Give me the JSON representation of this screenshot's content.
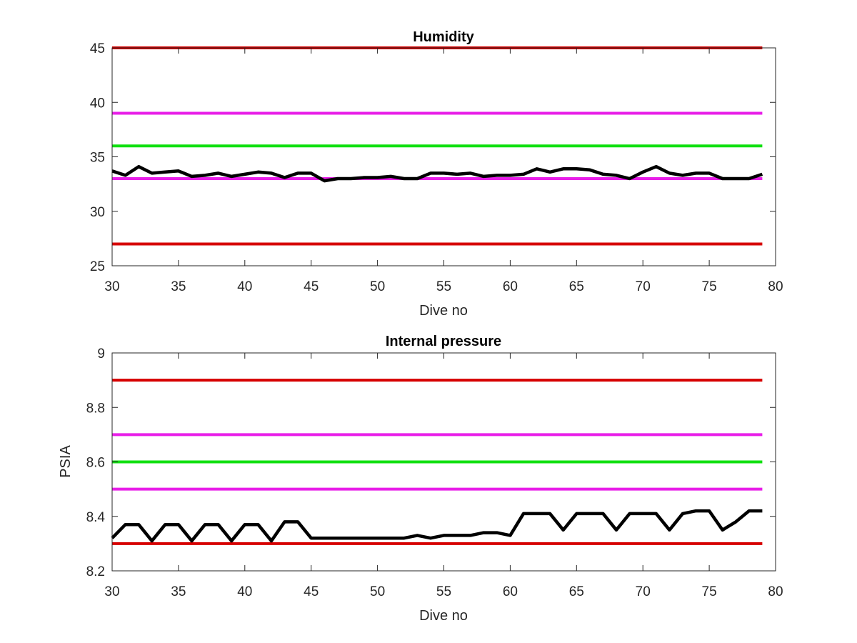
{
  "chart_data": [
    {
      "type": "line",
      "title": "Humidity",
      "xlabel": "Dive no",
      "ylabel": "",
      "xlim": [
        30,
        80
      ],
      "ylim": [
        25,
        45
      ],
      "xticks": [
        30,
        35,
        40,
        45,
        50,
        55,
        60,
        65,
        70,
        75,
        80
      ],
      "yticks": [
        25,
        30,
        35,
        40,
        45
      ],
      "grid": false,
      "series": [
        {
          "color": "#000000",
          "kind": "data",
          "x": [
            30,
            31,
            32,
            33,
            34,
            35,
            36,
            37,
            38,
            39,
            40,
            41,
            42,
            43,
            44,
            45,
            46,
            47,
            48,
            49,
            50,
            51,
            52,
            53,
            54,
            55,
            56,
            57,
            58,
            59,
            60,
            61,
            62,
            63,
            64,
            65,
            66,
            67,
            68,
            69,
            70,
            71,
            72,
            73,
            74,
            75,
            76,
            77,
            78,
            79
          ],
          "y": [
            33.7,
            33.3,
            34.1,
            33.5,
            33.6,
            33.7,
            33.2,
            33.3,
            33.5,
            33.2,
            33.4,
            33.6,
            33.5,
            33.1,
            33.5,
            33.5,
            32.8,
            33.0,
            33.0,
            33.1,
            33.1,
            33.2,
            33.0,
            33.0,
            33.5,
            33.5,
            33.4,
            33.5,
            33.2,
            33.3,
            33.3,
            33.4,
            33.9,
            33.6,
            33.9,
            33.9,
            33.8,
            33.4,
            33.3,
            33.0,
            33.6,
            34.1,
            33.5,
            33.3,
            33.5,
            33.5,
            33.0,
            33.0,
            33.0,
            33.4
          ]
        },
        {
          "color": "#d60000",
          "kind": "limit",
          "x": [
            30,
            79
          ],
          "y": [
            45,
            45
          ]
        },
        {
          "color": "#e81ee8",
          "kind": "limit",
          "x": [
            30,
            79
          ],
          "y": [
            39,
            39
          ]
        },
        {
          "color": "#10e010",
          "kind": "limit",
          "x": [
            30,
            79
          ],
          "y": [
            36,
            36
          ]
        },
        {
          "color": "#e81ee8",
          "kind": "limit",
          "x": [
            30,
            79
          ],
          "y": [
            33,
            33
          ]
        },
        {
          "color": "#d60000",
          "kind": "limit",
          "x": [
            30,
            79
          ],
          "y": [
            27,
            27
          ]
        }
      ]
    },
    {
      "type": "line",
      "title": "Internal pressure",
      "xlabel": "Dive no",
      "ylabel": "PSIA",
      "xlim": [
        30,
        80
      ],
      "ylim": [
        8.2,
        9
      ],
      "xticks": [
        30,
        35,
        40,
        45,
        50,
        55,
        60,
        65,
        70,
        75,
        80
      ],
      "yticks": [
        8.2,
        8.4,
        8.6,
        8.8,
        9
      ],
      "grid": false,
      "series": [
        {
          "color": "#000000",
          "kind": "data",
          "x": [
            30,
            31,
            32,
            33,
            34,
            35,
            36,
            37,
            38,
            39,
            40,
            41,
            42,
            43,
            44,
            45,
            46,
            47,
            48,
            49,
            50,
            51,
            52,
            53,
            54,
            55,
            56,
            57,
            58,
            59,
            60,
            61,
            62,
            63,
            64,
            65,
            66,
            67,
            68,
            69,
            70,
            71,
            72,
            73,
            74,
            75,
            76,
            77,
            78,
            79
          ],
          "y": [
            8.32,
            8.37,
            8.37,
            8.31,
            8.37,
            8.37,
            8.31,
            8.37,
            8.37,
            8.31,
            8.37,
            8.37,
            8.31,
            8.38,
            8.38,
            8.32,
            8.32,
            8.32,
            8.32,
            8.32,
            8.32,
            8.32,
            8.32,
            8.33,
            8.32,
            8.33,
            8.33,
            8.33,
            8.34,
            8.34,
            8.33,
            8.41,
            8.41,
            8.41,
            8.35,
            8.41,
            8.41,
            8.41,
            8.35,
            8.41,
            8.41,
            8.41,
            8.35,
            8.41,
            8.42,
            8.42,
            8.35,
            8.38,
            8.42,
            8.42
          ]
        },
        {
          "color": "#d60000",
          "kind": "limit",
          "x": [
            30,
            79
          ],
          "y": [
            8.9,
            8.9
          ]
        },
        {
          "color": "#e81ee8",
          "kind": "limit",
          "x": [
            30,
            79
          ],
          "y": [
            8.7,
            8.7
          ]
        },
        {
          "color": "#10e010",
          "kind": "limit",
          "x": [
            30,
            79
          ],
          "y": [
            8.6,
            8.6
          ]
        },
        {
          "color": "#e81ee8",
          "kind": "limit",
          "x": [
            30,
            79
          ],
          "y": [
            8.5,
            8.5
          ]
        },
        {
          "color": "#d60000",
          "kind": "limit",
          "x": [
            30,
            79
          ],
          "y": [
            8.3,
            8.3
          ]
        }
      ]
    }
  ]
}
